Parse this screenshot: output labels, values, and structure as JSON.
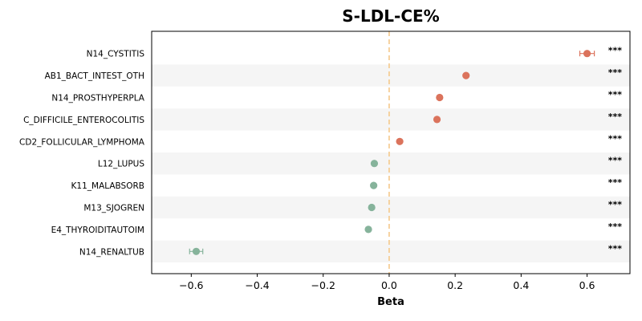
{
  "chart_data": {
    "type": "scatter",
    "title": "S-LDL-CE%",
    "xlabel": "Beta",
    "ylabel": "",
    "xlim": [
      -0.72,
      0.73
    ],
    "xticks": [
      -0.6,
      -0.4,
      -0.2,
      0.0,
      0.2,
      0.4,
      0.6
    ],
    "xtick_labels": [
      "−0.6",
      "−0.4",
      "−0.2",
      "0.0",
      "0.2",
      "0.4",
      "0.6"
    ],
    "reference_line": 0,
    "reference_line_color": "#f5c98a",
    "positive_color": "#db735c",
    "negative_color": "#86b39b",
    "stripe_color": "#f5f5f5",
    "grid": false,
    "categories": [
      "N14_CYSTITIS",
      "AB1_BACT_INTEST_OTH",
      "N14_PROSTHYPERPLA",
      "C_DIFFICILE_ENTEROCOLITIS",
      "CD2_FOLLICULAR_LYMPHOMA",
      "L12_LUPUS",
      "K11_MALABSORB",
      "M13_SJOGREN",
      "E4_THYROIDITAUTOIM",
      "N14_RENALTUB"
    ],
    "values": [
      0.6,
      0.233,
      0.153,
      0.145,
      0.032,
      -0.045,
      -0.047,
      -0.053,
      -0.063,
      -0.585
    ],
    "ci_low": [
      0.578,
      0.228,
      0.149,
      0.141,
      0.029,
      -0.048,
      -0.05,
      -0.056,
      -0.066,
      -0.605
    ],
    "ci_high": [
      0.622,
      0.238,
      0.157,
      0.149,
      0.035,
      -0.042,
      -0.044,
      -0.05,
      -0.06,
      -0.565
    ],
    "significance": [
      "***",
      "***",
      "***",
      "***",
      "***",
      "***",
      "***",
      "***",
      "***",
      "***"
    ]
  }
}
